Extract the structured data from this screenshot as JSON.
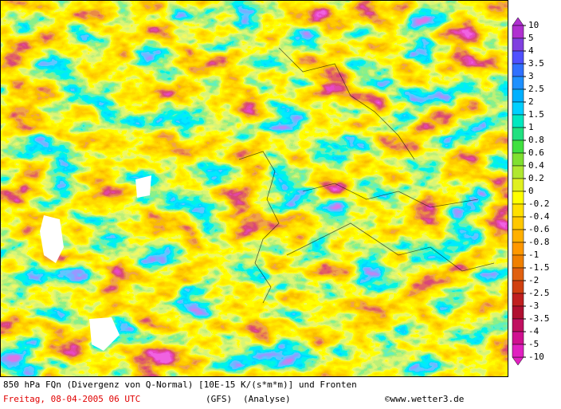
{
  "map": {
    "title": "850 hPa FQn (Divergenz von Q-Normal) [10E-15 K/(s*m*m)] und Fronten",
    "date": "Freitag, 08-04-2005  06 UTC",
    "model": "(GFS)",
    "run": "(Analyse)",
    "copyright": "©www.wetter3.de",
    "colorbar": {
      "labels": [
        10,
        5,
        4,
        3.5,
        3,
        2.5,
        2,
        1.5,
        1,
        0.8,
        0.6,
        0.4,
        0.2,
        0,
        -0.2,
        -0.4,
        -0.6,
        -0.8,
        -1,
        -1.5,
        -2,
        -2.5,
        -3,
        -3.5,
        -4,
        -5,
        -10
      ],
      "colors": [
        "#b030d0",
        "#8040e0",
        "#5050ff",
        "#3070ff",
        "#1e90ff",
        "#00b0ff",
        "#00d0ff",
        "#00e8c0",
        "#20e080",
        "#40e040",
        "#80e030",
        "#b0e830",
        "#e0f020",
        "#ffff00",
        "#ffe000",
        "#ffc800",
        "#ffb000",
        "#ff9800",
        "#f08000",
        "#e06010",
        "#d04010",
        "#c02020",
        "#b01030",
        "#c01060",
        "#d01090",
        "#e020c0"
      ]
    }
  }
}
